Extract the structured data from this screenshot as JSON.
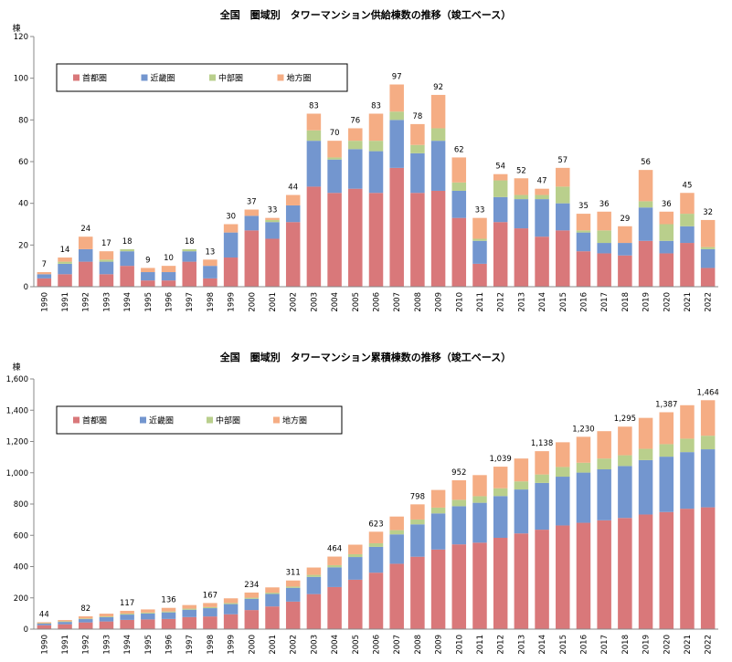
{
  "colors": {
    "首都圏": "#d9787a",
    "近畿圏": "#7396cf",
    "中部圏": "#b9cf8c",
    "地方圏": "#f5ad84",
    "axis": "#888888"
  },
  "chart_data": [
    {
      "type": "bar",
      "stacked": true,
      "title": "全国　圏域別　タワーマンション供給棟数の推移（竣工ベース）",
      "ylabel": "棟",
      "ylim": [
        0,
        120
      ],
      "yticks": [
        "0",
        "20",
        "40",
        "60",
        "80",
        "100",
        "120"
      ],
      "ytick_values": [
        0,
        20,
        40,
        60,
        80,
        100,
        120
      ],
      "legend_position": "top-left",
      "categories": [
        "1990",
        "1991",
        "1992",
        "1993",
        "1994",
        "1995",
        "1996",
        "1997",
        "1998",
        "1999",
        "2000",
        "2001",
        "2002",
        "2003",
        "2004",
        "2005",
        "2006",
        "2007",
        "2008",
        "2009",
        "2010",
        "2011",
        "2012",
        "2013",
        "2014",
        "2015",
        "2016",
        "2017",
        "2018",
        "2019",
        "2020",
        "2021",
        "2022"
      ],
      "totals": [
        7,
        14,
        24,
        17,
        18,
        9,
        10,
        18,
        13,
        30,
        37,
        33,
        44,
        83,
        70,
        76,
        83,
        97,
        78,
        92,
        62,
        33,
        54,
        52,
        47,
        57,
        35,
        36,
        29,
        56,
        36,
        45,
        32
      ],
      "total_labels": [
        "7",
        "14",
        "24",
        "17",
        "18",
        "9",
        "10",
        "18",
        "13",
        "30",
        "37",
        "33",
        "44",
        "83",
        "70",
        "76",
        "83",
        "97",
        "78",
        "92",
        "62",
        "33",
        "54",
        "52",
        "47",
        "57",
        "35",
        "36",
        "29",
        "56",
        "36",
        "45",
        "32"
      ],
      "series": [
        {
          "name": "首都圏",
          "values": [
            4,
            6,
            12,
            6,
            10,
            3,
            3,
            12,
            4,
            14,
            27,
            23,
            31,
            48,
            45,
            47,
            45,
            57,
            45,
            46,
            33,
            11,
            31,
            28,
            24,
            27,
            17,
            16,
            15,
            22,
            16,
            21,
            9
          ]
        },
        {
          "name": "近畿圏",
          "values": [
            2,
            5,
            6,
            6,
            7,
            4,
            4,
            5,
            6,
            12,
            7,
            8,
            8,
            22,
            16,
            19,
            20,
            23,
            19,
            24,
            13,
            11,
            12,
            14,
            18,
            13,
            9,
            5,
            6,
            16,
            6,
            8,
            9
          ]
        },
        {
          "name": "中部圏",
          "values": [
            0,
            1,
            0,
            1,
            1,
            0,
            0,
            1,
            0,
            0,
            0,
            1,
            0,
            5,
            1,
            4,
            5,
            4,
            4,
            6,
            4,
            1,
            8,
            2,
            2,
            8,
            1,
            6,
            0,
            3,
            8,
            6,
            1
          ]
        },
        {
          "name": "地方圏",
          "values": [
            1,
            2,
            6,
            4,
            0,
            2,
            3,
            0,
            3,
            4,
            3,
            1,
            5,
            8,
            8,
            6,
            13,
            13,
            10,
            16,
            12,
            10,
            3,
            8,
            3,
            9,
            8,
            9,
            8,
            15,
            6,
            10,
            13
          ]
        }
      ]
    },
    {
      "type": "bar",
      "stacked": true,
      "title": "全国　圏域別　タワーマンション累積棟数の推移（竣工ベース）",
      "ylabel": "棟",
      "ylim": [
        0,
        1600
      ],
      "yticks": [
        "0",
        "200",
        "400",
        "600",
        "800",
        "1,000",
        "1,200",
        "1,400",
        "1,600"
      ],
      "ytick_values": [
        0,
        200,
        400,
        600,
        800,
        1000,
        1200,
        1400,
        1600
      ],
      "legend_position": "top-left",
      "categories": [
        "1990",
        "1991",
        "1992",
        "1993",
        "1994",
        "1995",
        "1996",
        "1997",
        "1998",
        "1999",
        "2000",
        "2001",
        "2002",
        "2003",
        "2004",
        "2005",
        "2006",
        "2007",
        "2008",
        "2009",
        "2010",
        "2011",
        "2012",
        "2013",
        "2014",
        "2015",
        "2016",
        "2017",
        "2018",
        "2019",
        "2020",
        "2021",
        "2022"
      ],
      "totals": [
        44,
        58,
        82,
        99,
        117,
        126,
        136,
        154,
        167,
        197,
        234,
        267,
        311,
        394,
        464,
        540,
        623,
        720,
        798,
        890,
        952,
        985,
        1039,
        1091,
        1138,
        1195,
        1230,
        1266,
        1295,
        1351,
        1387,
        1432,
        1464
      ],
      "total_labels": [
        "44",
        "",
        "82",
        "",
        "117",
        "",
        "136",
        "",
        "167",
        "",
        "234",
        "",
        "311",
        "",
        "464",
        "",
        "623",
        "",
        "798",
        "",
        "952",
        "",
        "1,039",
        "",
        "1,138",
        "",
        "1,230",
        "",
        "1,295",
        "",
        "1,387",
        "",
        "1,464"
      ],
      "series": [
        {
          "name": "首都圏",
          "values": [
            25,
            31,
            43,
            49,
            59,
            62,
            65,
            77,
            81,
            95,
            122,
            145,
            176,
            224,
            269,
            316,
            361,
            418,
            463,
            509,
            542,
            553,
            584,
            612,
            636,
            663,
            680,
            696,
            711,
            733,
            749,
            770,
            779
          ]
        },
        {
          "name": "近畿圏",
          "values": [
            10,
            15,
            21,
            27,
            34,
            38,
            42,
            47,
            53,
            65,
            72,
            80,
            88,
            110,
            126,
            145,
            165,
            188,
            207,
            231,
            244,
            255,
            267,
            281,
            299,
            312,
            321,
            326,
            332,
            348,
            354,
            362,
            371
          ]
        },
        {
          "name": "中部圏",
          "values": [
            3,
            4,
            4,
            5,
            6,
            6,
            6,
            7,
            7,
            7,
            7,
            8,
            8,
            13,
            14,
            18,
            23,
            27,
            31,
            37,
            41,
            42,
            50,
            52,
            54,
            62,
            63,
            69,
            69,
            72,
            80,
            86,
            87
          ]
        },
        {
          "name": "地方圏",
          "values": [
            6,
            8,
            14,
            18,
            18,
            20,
            23,
            23,
            26,
            30,
            33,
            34,
            39,
            47,
            55,
            61,
            74,
            87,
            97,
            113,
            125,
            135,
            138,
            146,
            149,
            158,
            166,
            175,
            183,
            198,
            204,
            214,
            227
          ]
        }
      ]
    }
  ]
}
